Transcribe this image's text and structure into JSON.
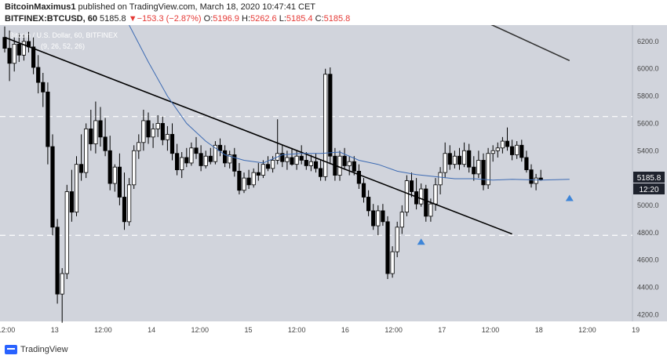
{
  "header": {
    "author": "BitcoinMaximus1",
    "published": "published on TradingView.com, March 18, 2020 10:47:41 CET",
    "symbol": "BITFINEX:BTCUSD, 60",
    "last": "5185.8",
    "change_arrow": "▼",
    "change": "−153.3 (−2.87%)",
    "o_label": "O:",
    "o": "5196.9",
    "h_label": "H:",
    "h": "5262.6",
    "l_label": "L:",
    "l": "5185.4",
    "c_label": "C:",
    "c": "5185.8"
  },
  "legend": {
    "title": "Bitcoin / U.S. Dollar, 60, BITFINEX",
    "indicator": "(9, 26, 52, 26)"
  },
  "price_badge": {
    "value": "5185.8",
    "countdown": "12:20",
    "color": "#ffffff"
  },
  "footer": {
    "brand": "TradingView"
  },
  "colors": {
    "background": "#d1d4dc",
    "candle": "#000000",
    "ma_blue": "#3d6bb3",
    "ma_black": "#333333",
    "marker": "#3d85d8"
  },
  "chart_data": {
    "type": "candlestick",
    "ylim": [
      4150,
      6320
    ],
    "y_ticks": [
      4200,
      4400,
      4600,
      4800,
      5000,
      5200,
      5400,
      5600,
      5800,
      6000,
      6200
    ],
    "x_ticks": [
      "12:00",
      "13",
      "12:00",
      "14",
      "12:00",
      "15",
      "12:00",
      "16",
      "12:00",
      "17",
      "12:00",
      "18",
      "12:00",
      "19"
    ],
    "horizontal_levels": [
      5650,
      4780
    ],
    "trendline": [
      [
        0,
        6230
      ],
      [
        106,
        4790
      ]
    ],
    "ma_black": [
      [
        100,
        6350
      ],
      [
        118,
        6060
      ]
    ],
    "ma_blue": [
      [
        26,
        6320
      ],
      [
        30,
        6050
      ],
      [
        34,
        5800
      ],
      [
        38,
        5600
      ],
      [
        42,
        5470
      ],
      [
        46,
        5370
      ],
      [
        50,
        5330
      ],
      [
        54,
        5310
      ],
      [
        58,
        5370
      ],
      [
        62,
        5380
      ],
      [
        66,
        5380
      ],
      [
        70,
        5390
      ],
      [
        74,
        5330
      ],
      [
        78,
        5300
      ],
      [
        82,
        5250
      ],
      [
        86,
        5225
      ],
      [
        90,
        5210
      ],
      [
        94,
        5195
      ],
      [
        98,
        5195
      ],
      [
        102,
        5185
      ],
      [
        106,
        5190
      ],
      [
        112,
        5185
      ],
      [
        118,
        5190
      ]
    ],
    "markers": [
      [
        87,
        4780
      ],
      [
        118,
        5100
      ]
    ],
    "candles": [
      {
        "o": 6230,
        "h": 6310,
        "l": 6120,
        "c": 6150
      },
      {
        "o": 6150,
        "h": 6280,
        "l": 5910,
        "c": 6040
      },
      {
        "o": 6040,
        "h": 6230,
        "l": 5980,
        "c": 6180
      },
      {
        "o": 6180,
        "h": 6260,
        "l": 6050,
        "c": 6100
      },
      {
        "o": 6100,
        "h": 6250,
        "l": 6060,
        "c": 6200
      },
      {
        "o": 6200,
        "h": 6270,
        "l": 6120,
        "c": 6160
      },
      {
        "o": 6160,
        "h": 6230,
        "l": 5960,
        "c": 6010
      },
      {
        "o": 6010,
        "h": 6100,
        "l": 5820,
        "c": 5900
      },
      {
        "o": 5900,
        "h": 5970,
        "l": 5720,
        "c": 5830
      },
      {
        "o": 5830,
        "h": 5900,
        "l": 5300,
        "c": 5430
      },
      {
        "o": 5430,
        "h": 5520,
        "l": 4780,
        "c": 4840
      },
      {
        "o": 4840,
        "h": 4900,
        "l": 4280,
        "c": 4350
      },
      {
        "o": 4350,
        "h": 4540,
        "l": 4140,
        "c": 4500
      },
      {
        "o": 4500,
        "h": 5150,
        "l": 4460,
        "c": 5100
      },
      {
        "o": 5100,
        "h": 5260,
        "l": 4880,
        "c": 4950
      },
      {
        "o": 4950,
        "h": 5360,
        "l": 4920,
        "c": 5300
      },
      {
        "o": 5300,
        "h": 5520,
        "l": 5180,
        "c": 5240
      },
      {
        "o": 5240,
        "h": 5600,
        "l": 5200,
        "c": 5560
      },
      {
        "o": 5560,
        "h": 5700,
        "l": 5400,
        "c": 5450
      },
      {
        "o": 5450,
        "h": 5760,
        "l": 5380,
        "c": 5620
      },
      {
        "o": 5620,
        "h": 5720,
        "l": 5430,
        "c": 5500
      },
      {
        "o": 5500,
        "h": 5640,
        "l": 5360,
        "c": 5400
      },
      {
        "o": 5400,
        "h": 5510,
        "l": 5110,
        "c": 5160
      },
      {
        "o": 5160,
        "h": 5300,
        "l": 5100,
        "c": 5280
      },
      {
        "o": 5280,
        "h": 5380,
        "l": 5000,
        "c": 5060
      },
      {
        "o": 5060,
        "h": 5240,
        "l": 4820,
        "c": 4880
      },
      {
        "o": 4880,
        "h": 5200,
        "l": 4850,
        "c": 5150
      },
      {
        "o": 5150,
        "h": 5440,
        "l": 5120,
        "c": 5400
      },
      {
        "o": 5400,
        "h": 5520,
        "l": 5340,
        "c": 5460
      },
      {
        "o": 5460,
        "h": 5700,
        "l": 5400,
        "c": 5620
      },
      {
        "o": 5620,
        "h": 5680,
        "l": 5450,
        "c": 5500
      },
      {
        "o": 5500,
        "h": 5600,
        "l": 5420,
        "c": 5560
      },
      {
        "o": 5560,
        "h": 5660,
        "l": 5500,
        "c": 5600
      },
      {
        "o": 5600,
        "h": 5650,
        "l": 5440,
        "c": 5480
      },
      {
        "o": 5480,
        "h": 5580,
        "l": 5400,
        "c": 5520
      },
      {
        "o": 5520,
        "h": 5600,
        "l": 5330,
        "c": 5380
      },
      {
        "o": 5380,
        "h": 5450,
        "l": 5220,
        "c": 5260
      },
      {
        "o": 5260,
        "h": 5390,
        "l": 5200,
        "c": 5350
      },
      {
        "o": 5350,
        "h": 5420,
        "l": 5280,
        "c": 5310
      },
      {
        "o": 5310,
        "h": 5460,
        "l": 5290,
        "c": 5420
      },
      {
        "o": 5420,
        "h": 5500,
        "l": 5340,
        "c": 5380
      },
      {
        "o": 5380,
        "h": 5440,
        "l": 5250,
        "c": 5290
      },
      {
        "o": 5290,
        "h": 5400,
        "l": 5270,
        "c": 5360
      },
      {
        "o": 5360,
        "h": 5420,
        "l": 5300,
        "c": 5320
      },
      {
        "o": 5320,
        "h": 5470,
        "l": 5300,
        "c": 5440
      },
      {
        "o": 5440,
        "h": 5490,
        "l": 5360,
        "c": 5400
      },
      {
        "o": 5400,
        "h": 5440,
        "l": 5280,
        "c": 5310
      },
      {
        "o": 5310,
        "h": 5400,
        "l": 5270,
        "c": 5370
      },
      {
        "o": 5370,
        "h": 5420,
        "l": 5210,
        "c": 5250
      },
      {
        "o": 5250,
        "h": 5310,
        "l": 5080,
        "c": 5110
      },
      {
        "o": 5110,
        "h": 5240,
        "l": 5090,
        "c": 5200
      },
      {
        "o": 5200,
        "h": 5260,
        "l": 5120,
        "c": 5150
      },
      {
        "o": 5150,
        "h": 5270,
        "l": 5130,
        "c": 5240
      },
      {
        "o": 5240,
        "h": 5310,
        "l": 5180,
        "c": 5220
      },
      {
        "o": 5220,
        "h": 5330,
        "l": 5200,
        "c": 5300
      },
      {
        "o": 5300,
        "h": 5360,
        "l": 5250,
        "c": 5270
      },
      {
        "o": 5270,
        "h": 5360,
        "l": 5240,
        "c": 5330
      },
      {
        "o": 5330,
        "h": 5630,
        "l": 5300,
        "c": 5380
      },
      {
        "o": 5380,
        "h": 5440,
        "l": 5280,
        "c": 5320
      },
      {
        "o": 5320,
        "h": 5400,
        "l": 5260,
        "c": 5350
      },
      {
        "o": 5350,
        "h": 5420,
        "l": 5290,
        "c": 5300
      },
      {
        "o": 5300,
        "h": 5400,
        "l": 5260,
        "c": 5360
      },
      {
        "o": 5360,
        "h": 5440,
        "l": 5300,
        "c": 5330
      },
      {
        "o": 5330,
        "h": 5390,
        "l": 5260,
        "c": 5290
      },
      {
        "o": 5290,
        "h": 5370,
        "l": 5250,
        "c": 5320
      },
      {
        "o": 5320,
        "h": 5380,
        "l": 5240,
        "c": 5270
      },
      {
        "o": 5270,
        "h": 5330,
        "l": 5180,
        "c": 5210
      },
      {
        "o": 5210,
        "h": 6000,
        "l": 5180,
        "c": 5960
      },
      {
        "o": 5960,
        "h": 6010,
        "l": 5300,
        "c": 5360
      },
      {
        "o": 5360,
        "h": 5420,
        "l": 5180,
        "c": 5220
      },
      {
        "o": 5220,
        "h": 5400,
        "l": 5180,
        "c": 5360
      },
      {
        "o": 5360,
        "h": 5420,
        "l": 5260,
        "c": 5290
      },
      {
        "o": 5290,
        "h": 5360,
        "l": 5220,
        "c": 5320
      },
      {
        "o": 5320,
        "h": 5360,
        "l": 5220,
        "c": 5250
      },
      {
        "o": 5250,
        "h": 5300,
        "l": 5120,
        "c": 5160
      },
      {
        "o": 5160,
        "h": 5200,
        "l": 5020,
        "c": 5060
      },
      {
        "o": 5060,
        "h": 5110,
        "l": 4920,
        "c": 4960
      },
      {
        "o": 4960,
        "h": 5010,
        "l": 4820,
        "c": 4850
      },
      {
        "o": 4850,
        "h": 5000,
        "l": 4780,
        "c": 4960
      },
      {
        "o": 4960,
        "h": 5010,
        "l": 4850,
        "c": 4880
      },
      {
        "o": 4880,
        "h": 4920,
        "l": 4460,
        "c": 4500
      },
      {
        "o": 4500,
        "h": 4700,
        "l": 4470,
        "c": 4660
      },
      {
        "o": 4660,
        "h": 4880,
        "l": 4620,
        "c": 4840
      },
      {
        "o": 4840,
        "h": 5000,
        "l": 4790,
        "c": 4950
      },
      {
        "o": 4950,
        "h": 5220,
        "l": 4920,
        "c": 5180
      },
      {
        "o": 5180,
        "h": 5240,
        "l": 5060,
        "c": 5100
      },
      {
        "o": 5100,
        "h": 5200,
        "l": 4970,
        "c": 5010
      },
      {
        "o": 5010,
        "h": 5160,
        "l": 4990,
        "c": 5120
      },
      {
        "o": 5120,
        "h": 5150,
        "l": 4880,
        "c": 4920
      },
      {
        "o": 4920,
        "h": 5050,
        "l": 4880,
        "c": 5010
      },
      {
        "o": 5010,
        "h": 5200,
        "l": 4960,
        "c": 5150
      },
      {
        "o": 5150,
        "h": 5280,
        "l": 5080,
        "c": 5240
      },
      {
        "o": 5240,
        "h": 5460,
        "l": 5200,
        "c": 5380
      },
      {
        "o": 5380,
        "h": 5440,
        "l": 5260,
        "c": 5300
      },
      {
        "o": 5300,
        "h": 5400,
        "l": 5270,
        "c": 5360
      },
      {
        "o": 5360,
        "h": 5420,
        "l": 5260,
        "c": 5300
      },
      {
        "o": 5300,
        "h": 5460,
        "l": 5280,
        "c": 5400
      },
      {
        "o": 5400,
        "h": 5450,
        "l": 5240,
        "c": 5280
      },
      {
        "o": 5280,
        "h": 5360,
        "l": 5180,
        "c": 5230
      },
      {
        "o": 5230,
        "h": 5400,
        "l": 5200,
        "c": 5330
      },
      {
        "o": 5330,
        "h": 5380,
        "l": 5110,
        "c": 5150
      },
      {
        "o": 5150,
        "h": 5420,
        "l": 5120,
        "c": 5380
      },
      {
        "o": 5380,
        "h": 5440,
        "l": 5320,
        "c": 5400
      },
      {
        "o": 5400,
        "h": 5460,
        "l": 5350,
        "c": 5420
      },
      {
        "o": 5420,
        "h": 5500,
        "l": 5380,
        "c": 5470
      },
      {
        "o": 5470,
        "h": 5570,
        "l": 5400,
        "c": 5430
      },
      {
        "o": 5430,
        "h": 5480,
        "l": 5330,
        "c": 5370
      },
      {
        "o": 5370,
        "h": 5470,
        "l": 5340,
        "c": 5440
      },
      {
        "o": 5440,
        "h": 5480,
        "l": 5320,
        "c": 5350
      },
      {
        "o": 5350,
        "h": 5400,
        "l": 5240,
        "c": 5260
      },
      {
        "o": 5260,
        "h": 5300,
        "l": 5130,
        "c": 5160
      },
      {
        "o": 5160,
        "h": 5230,
        "l": 5110,
        "c": 5200
      },
      {
        "o": 5200,
        "h": 5260,
        "l": 5180,
        "c": 5186
      }
    ]
  }
}
